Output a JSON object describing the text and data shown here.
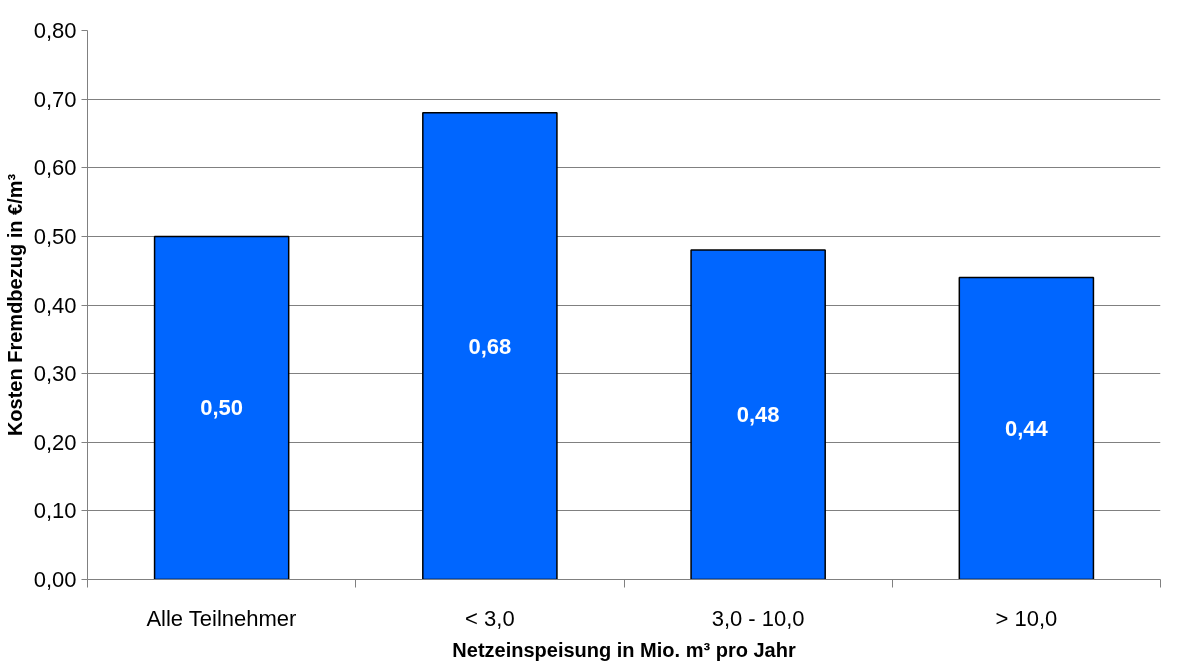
{
  "chart_data": {
    "type": "bar",
    "xlabel": "Netzeinspeisung in Mio. m³ pro Jahr",
    "ylabel": "Kosten Fremdbezug in €/m³",
    "categories": [
      "Alle Teilnehmer",
      "< 3,0",
      "3,0 - 10,0",
      "> 10,0"
    ],
    "values": [
      0.5,
      0.68,
      0.48,
      0.44
    ],
    "value_labels": [
      "0,50",
      "0,68",
      "0,48",
      "0,44"
    ],
    "color": "#0066ff",
    "ylim": [
      0,
      0.8
    ],
    "yticks": [
      {
        "value": 0,
        "label": "0,00"
      },
      {
        "value": 0.1,
        "label": "0,10"
      },
      {
        "value": 0.2,
        "label": "0,20"
      },
      {
        "value": 0.3,
        "label": "0,30"
      },
      {
        "value": 0.4,
        "label": "0,40"
      },
      {
        "value": 0.5,
        "label": "0,50"
      },
      {
        "value": 0.6,
        "label": "0,60"
      },
      {
        "value": 0.7,
        "label": "0,70"
      },
      {
        "value": 0.8,
        "label": "0,80"
      }
    ],
    "grid": "y"
  }
}
